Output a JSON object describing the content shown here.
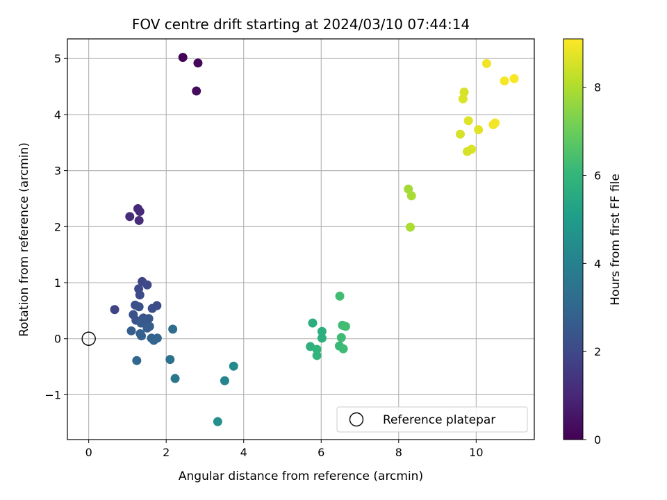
{
  "chart_data": {
    "type": "scatter",
    "title": "FOV centre drift starting at 2024/03/10 07:44:14",
    "xlabel": "Angular distance from reference (arcmin)",
    "ylabel": "Rotation from reference (arcmin)",
    "xlim": [
      -0.55,
      11.5
    ],
    "ylim": [
      -1.8,
      5.35
    ],
    "xticks": [
      0,
      2,
      4,
      6,
      8,
      10
    ],
    "yticks": [
      -1,
      0,
      1,
      2,
      3,
      4,
      5
    ],
    "xtick_labels": [
      "0",
      "2",
      "4",
      "6",
      "8",
      "10"
    ],
    "ytick_labels": [
      "−1",
      "0",
      "1",
      "2",
      "3",
      "4",
      "5"
    ],
    "grid": true,
    "colormap": "viridis",
    "colorbar": {
      "label": "Hours from first FF file",
      "range": [
        0,
        9.1
      ],
      "ticks": [
        0,
        2,
        4,
        6,
        8
      ],
      "tick_labels": [
        "0",
        "2",
        "4",
        "6",
        "8"
      ]
    },
    "legend": {
      "placement": "lower right",
      "entries": [
        {
          "label": "Reference platepar",
          "marker": "open-circle"
        }
      ]
    },
    "reference_point": {
      "x": 0,
      "y": 0
    },
    "points": [
      {
        "x": 2.43,
        "y": 5.02,
        "hours": 0.05
      },
      {
        "x": 2.82,
        "y": 4.92,
        "hours": 0.15
      },
      {
        "x": 2.78,
        "y": 4.42,
        "hours": 0.25
      },
      {
        "x": 1.27,
        "y": 2.32,
        "hours": 1.05
      },
      {
        "x": 1.32,
        "y": 2.27,
        "hours": 1.1
      },
      {
        "x": 1.06,
        "y": 2.18,
        "hours": 1.12
      },
      {
        "x": 1.3,
        "y": 2.11,
        "hours": 1.15
      },
      {
        "x": 0.67,
        "y": 0.52,
        "hours": 1.85
      },
      {
        "x": 1.38,
        "y": 1.02,
        "hours": 1.9
      },
      {
        "x": 1.51,
        "y": 0.96,
        "hours": 1.95
      },
      {
        "x": 1.29,
        "y": 0.89,
        "hours": 2.0
      },
      {
        "x": 1.32,
        "y": 0.78,
        "hours": 2.05
      },
      {
        "x": 1.76,
        "y": 0.59,
        "hours": 2.1
      },
      {
        "x": 1.64,
        "y": 0.54,
        "hours": 2.15
      },
      {
        "x": 1.2,
        "y": 0.6,
        "hours": 2.2
      },
      {
        "x": 1.3,
        "y": 0.57,
        "hours": 2.25
      },
      {
        "x": 1.15,
        "y": 0.43,
        "hours": 2.3
      },
      {
        "x": 1.22,
        "y": 0.33,
        "hours": 2.35
      },
      {
        "x": 1.41,
        "y": 0.37,
        "hours": 2.4
      },
      {
        "x": 1.55,
        "y": 0.36,
        "hours": 2.45
      },
      {
        "x": 1.45,
        "y": 0.31,
        "hours": 2.5
      },
      {
        "x": 1.35,
        "y": 0.28,
        "hours": 2.55
      },
      {
        "x": 1.57,
        "y": 0.22,
        "hours": 2.6
      },
      {
        "x": 1.51,
        "y": 0.19,
        "hours": 2.65
      },
      {
        "x": 1.1,
        "y": 0.14,
        "hours": 2.7
      },
      {
        "x": 1.33,
        "y": 0.09,
        "hours": 2.75
      },
      {
        "x": 1.36,
        "y": 0.05,
        "hours": 2.8
      },
      {
        "x": 1.62,
        "y": 0.01,
        "hours": 2.85
      },
      {
        "x": 1.77,
        "y": 0.01,
        "hours": 2.9
      },
      {
        "x": 1.68,
        "y": -0.03,
        "hours": 2.95
      },
      {
        "x": 1.24,
        "y": -0.39,
        "hours": 3.0
      },
      {
        "x": 2.17,
        "y": 0.17,
        "hours": 3.2
      },
      {
        "x": 2.1,
        "y": -0.37,
        "hours": 3.4
      },
      {
        "x": 2.23,
        "y": -0.71,
        "hours": 3.6
      },
      {
        "x": 3.51,
        "y": -0.75,
        "hours": 4.1
      },
      {
        "x": 3.74,
        "y": -0.49,
        "hours": 4.3
      },
      {
        "x": 3.33,
        "y": -1.48,
        "hours": 4.55
      },
      {
        "x": 6.48,
        "y": 0.76,
        "hours": 6.3
      },
      {
        "x": 5.78,
        "y": 0.28,
        "hours": 5.65
      },
      {
        "x": 6.02,
        "y": 0.13,
        "hours": 5.7
      },
      {
        "x": 6.55,
        "y": 0.24,
        "hours": 6.25
      },
      {
        "x": 6.63,
        "y": 0.22,
        "hours": 6.3
      },
      {
        "x": 6.02,
        "y": 0.01,
        "hours": 5.75
      },
      {
        "x": 6.52,
        "y": 0.02,
        "hours": 6.2
      },
      {
        "x": 5.72,
        "y": -0.14,
        "hours": 5.8
      },
      {
        "x": 5.89,
        "y": -0.19,
        "hours": 5.9
      },
      {
        "x": 5.89,
        "y": -0.3,
        "hours": 5.95
      },
      {
        "x": 6.47,
        "y": -0.13,
        "hours": 6.1
      },
      {
        "x": 6.57,
        "y": -0.18,
        "hours": 6.2
      },
      {
        "x": 8.25,
        "y": 2.67,
        "hours": 7.85
      },
      {
        "x": 8.33,
        "y": 2.55,
        "hours": 7.9
      },
      {
        "x": 8.3,
        "y": 1.99,
        "hours": 7.95
      },
      {
        "x": 9.69,
        "y": 4.4,
        "hours": 8.55
      },
      {
        "x": 9.66,
        "y": 4.28,
        "hours": 8.6
      },
      {
        "x": 9.8,
        "y": 3.89,
        "hours": 8.65
      },
      {
        "x": 9.59,
        "y": 3.65,
        "hours": 8.55
      },
      {
        "x": 10.06,
        "y": 3.73,
        "hours": 8.7
      },
      {
        "x": 9.88,
        "y": 3.38,
        "hours": 8.6
      },
      {
        "x": 9.77,
        "y": 3.34,
        "hours": 8.55
      },
      {
        "x": 10.27,
        "y": 4.91,
        "hours": 8.9
      },
      {
        "x": 10.73,
        "y": 4.6,
        "hours": 9.0
      },
      {
        "x": 10.98,
        "y": 4.64,
        "hours": 9.05
      },
      {
        "x": 10.44,
        "y": 3.82,
        "hours": 8.9
      },
      {
        "x": 10.49,
        "y": 3.85,
        "hours": 8.95
      }
    ]
  }
}
